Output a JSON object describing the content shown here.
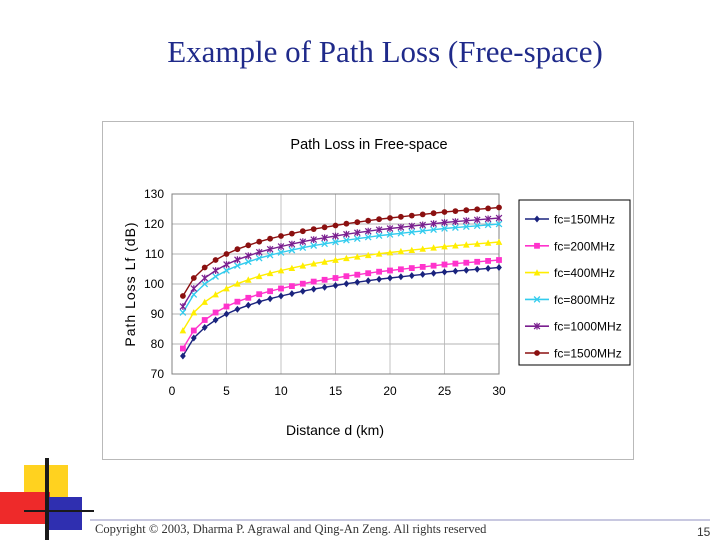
{
  "slide": {
    "title": "Example of Path Loss (Free-space)",
    "copyright": "Copyright © 2003, Dharma P. Agrawal and Qing-An Zeng. All rights reserved",
    "page_number": "15"
  },
  "colors": {
    "title": "#1f2a8a",
    "deco_yellow": "#ffd21f",
    "deco_red": "#ee2a2a",
    "deco_blue": "#2f2fb0"
  },
  "chart_data": {
    "type": "line",
    "title": "Path Loss in Free-space",
    "xlabel": "Distance d (km)",
    "ylabel": "Path Loss Lf (dB)",
    "xlim": [
      0,
      30
    ],
    "ylim": [
      70,
      130
    ],
    "x_ticks": [
      0,
      5,
      10,
      15,
      20,
      25,
      30
    ],
    "y_ticks": [
      70,
      80,
      90,
      100,
      110,
      120,
      130
    ],
    "grid": true,
    "legend_position": "right",
    "x": [
      1,
      2,
      3,
      4,
      5,
      6,
      7,
      8,
      9,
      10,
      11,
      12,
      13,
      14,
      15,
      16,
      17,
      18,
      19,
      20,
      21,
      22,
      23,
      24,
      25,
      26,
      27,
      28,
      29,
      30
    ],
    "series": [
      {
        "name": "fc=150MHz",
        "color": "#1a237e",
        "marker": "diamond",
        "values": [
          76.0,
          82.0,
          85.5,
          88.0,
          90.0,
          91.6,
          92.9,
          94.1,
          95.1,
          96.0,
          96.8,
          97.6,
          98.3,
          98.9,
          99.5,
          100.1,
          100.6,
          101.1,
          101.6,
          102.0,
          102.4,
          102.8,
          103.2,
          103.6,
          104.0,
          104.3,
          104.6,
          104.9,
          105.2,
          105.5
        ]
      },
      {
        "name": "fc=200MHz",
        "color": "#ff33cc",
        "marker": "square",
        "values": [
          78.5,
          84.5,
          88.0,
          90.5,
          92.5,
          94.1,
          95.4,
          96.6,
          97.6,
          98.5,
          99.3,
          100.1,
          100.8,
          101.4,
          102.0,
          102.6,
          103.1,
          103.6,
          104.1,
          104.5,
          104.9,
          105.3,
          105.7,
          106.1,
          106.5,
          106.8,
          107.1,
          107.4,
          107.7,
          108.0
        ]
      },
      {
        "name": "fc=400MHz",
        "color": "#ffee00",
        "marker": "triangle",
        "values": [
          84.5,
          90.5,
          94.0,
          96.5,
          98.5,
          100.1,
          101.4,
          102.6,
          103.6,
          104.5,
          105.3,
          106.1,
          106.8,
          107.4,
          108.0,
          108.6,
          109.1,
          109.6,
          110.1,
          110.5,
          110.9,
          111.3,
          111.7,
          112.1,
          112.5,
          112.8,
          113.1,
          113.4,
          113.7,
          114.0
        ]
      },
      {
        "name": "fc=800MHz",
        "color": "#33ccee",
        "marker": "x",
        "values": [
          90.5,
          96.5,
          100.0,
          102.5,
          104.5,
          106.1,
          107.4,
          108.6,
          109.6,
          110.5,
          111.3,
          112.1,
          112.8,
          113.4,
          114.0,
          114.6,
          115.1,
          115.6,
          116.1,
          116.5,
          116.9,
          117.3,
          117.7,
          118.1,
          118.5,
          118.8,
          119.1,
          119.4,
          119.7,
          120.0
        ]
      },
      {
        "name": "fc=1000MHz",
        "color": "#7a1f8f",
        "marker": "star",
        "values": [
          92.5,
          98.5,
          102.0,
          104.5,
          106.5,
          108.1,
          109.4,
          110.6,
          111.6,
          112.5,
          113.3,
          114.1,
          114.8,
          115.4,
          116.0,
          116.6,
          117.1,
          117.6,
          118.1,
          118.5,
          118.9,
          119.3,
          119.7,
          120.1,
          120.5,
          120.8,
          121.1,
          121.4,
          121.7,
          122.0
        ]
      },
      {
        "name": "fc=1500MHz",
        "color": "#8b1010",
        "marker": "circle",
        "values": [
          96.0,
          102.0,
          105.5,
          108.0,
          110.0,
          111.6,
          112.9,
          114.1,
          115.1,
          116.0,
          116.8,
          117.6,
          118.3,
          118.9,
          119.5,
          120.1,
          120.6,
          121.1,
          121.6,
          122.0,
          122.4,
          122.8,
          123.2,
          123.6,
          124.0,
          124.3,
          124.6,
          124.9,
          125.2,
          125.5
        ]
      }
    ]
  }
}
